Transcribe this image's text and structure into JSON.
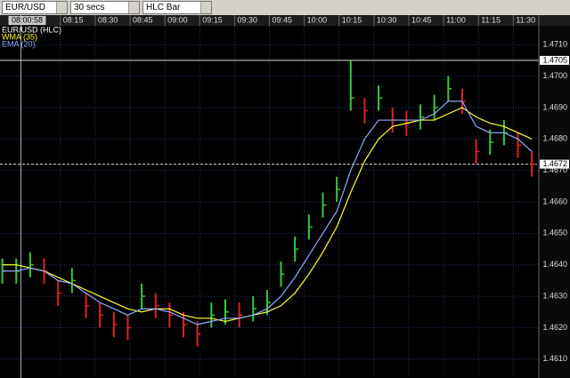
{
  "toolbar": {
    "symbol": "EUR/USD",
    "interval": "30 secs",
    "chart_type": "HLC Bar"
  },
  "chart_data": {
    "type": "hlc",
    "title": "EUR/USD (HLC)",
    "x": [
      -10,
      -4,
      2,
      8,
      14,
      20,
      26,
      32,
      38,
      44,
      50,
      56,
      62,
      68,
      74,
      80,
      86,
      92,
      98,
      104,
      110,
      116,
      122,
      128,
      134,
      140,
      146,
      152,
      158,
      164,
      170,
      176,
      182,
      188,
      194,
      200,
      206,
      212,
      218
    ],
    "high": [
      1.4642,
      1.4642,
      1.4644,
      1.4642,
      1.4635,
      1.4639,
      1.4631,
      1.4628,
      1.4625,
      1.4624,
      1.4634,
      1.4631,
      1.4628,
      1.4625,
      1.4622,
      1.4628,
      1.4629,
      1.4628,
      1.463,
      1.4632,
      1.4641,
      1.4649,
      1.4656,
      1.4663,
      1.4668,
      1.4705,
      1.4693,
      1.4697,
      1.469,
      1.4689,
      1.4691,
      1.4694,
      1.47,
      1.4696,
      1.468,
      1.4683,
      1.4686,
      1.4682,
      1.4676
    ],
    "low": [
      1.4634,
      1.4634,
      1.4636,
      1.4634,
      1.4627,
      1.4631,
      1.4623,
      1.462,
      1.4617,
      1.4616,
      1.4626,
      1.4623,
      1.462,
      1.4617,
      1.4614,
      1.462,
      1.4621,
      1.462,
      1.4622,
      1.4624,
      1.4633,
      1.4641,
      1.4648,
      1.4655,
      1.466,
      1.4689,
      1.4685,
      1.4689,
      1.4682,
      1.4681,
      1.4683,
      1.4686,
      1.4692,
      1.4688,
      1.4672,
      1.4675,
      1.4678,
      1.4674,
      1.4668
    ],
    "close": [
      1.4638,
      1.4638,
      1.464,
      1.4638,
      1.4631,
      1.4635,
      1.4627,
      1.4624,
      1.4621,
      1.462,
      1.463,
      1.4627,
      1.4624,
      1.4621,
      1.4618,
      1.4624,
      1.4625,
      1.4624,
      1.4626,
      1.4628,
      1.4637,
      1.4645,
      1.4652,
      1.4659,
      1.4664,
      1.4693,
      1.4689,
      1.4693,
      1.4686,
      1.4685,
      1.4687,
      1.469,
      1.4696,
      1.4692,
      1.4676,
      1.4679,
      1.4682,
      1.4678,
      1.4672
    ],
    "up_color": "#33cc33",
    "down_color": "#dd2222",
    "price_color": "#ffffff",
    "series": [
      {
        "name": "WMA (35)",
        "color": "#ffff33",
        "values": [
          1.464,
          1.464,
          1.4639,
          1.4638,
          1.4636,
          1.4634,
          1.4632,
          1.463,
          1.4628,
          1.4626,
          1.4625,
          1.4626,
          1.4626,
          1.4624,
          1.4623,
          1.4623,
          1.4622,
          1.4623,
          1.4624,
          1.4625,
          1.4627,
          1.4631,
          1.4637,
          1.4644,
          1.4652,
          1.4663,
          1.4673,
          1.468,
          1.4684,
          1.4685,
          1.4686,
          1.4686,
          1.4688,
          1.469,
          1.4687,
          1.4685,
          1.4684,
          1.4682,
          1.468
        ]
      },
      {
        "name": "EMA (20)",
        "color": "#8fa8ff",
        "values": [
          1.4638,
          1.4638,
          1.4639,
          1.4638,
          1.4635,
          1.4634,
          1.4631,
          1.4628,
          1.4626,
          1.4624,
          1.4626,
          1.4626,
          1.4625,
          1.4623,
          1.4621,
          1.4622,
          1.4623,
          1.4623,
          1.4624,
          1.4626,
          1.463,
          1.4636,
          1.4643,
          1.465,
          1.4657,
          1.467,
          1.468,
          1.4686,
          1.4686,
          1.4686,
          1.4686,
          1.4688,
          1.4692,
          1.4692,
          1.4684,
          1.4682,
          1.4682,
          1.468,
          1.4676
        ]
      }
    ],
    "xlim": [
      -11,
      221
    ],
    "xticks": [
      {
        "value": 15,
        "label": "08:15"
      },
      {
        "value": 30,
        "label": "08:30"
      },
      {
        "value": 45,
        "label": "08:45"
      },
      {
        "value": 60,
        "label": "09:00"
      },
      {
        "value": 75,
        "label": "09:15"
      },
      {
        "value": 90,
        "label": "09:30"
      },
      {
        "value": 105,
        "label": "09:45"
      },
      {
        "value": 120,
        "label": "10:00"
      },
      {
        "value": 135,
        "label": "10:15"
      },
      {
        "value": 150,
        "label": "10:30"
      },
      {
        "value": 165,
        "label": "10:45"
      },
      {
        "value": 180,
        "label": "11:00"
      },
      {
        "value": 195,
        "label": "11:15"
      },
      {
        "value": 210,
        "label": "11:30"
      }
    ],
    "cursor": {
      "value": -2,
      "label": "08:00:58"
    },
    "ylim": [
      1.4604,
      1.4716
    ],
    "yticks": [
      {
        "value": 1.461,
        "label": "1.4610"
      },
      {
        "value": 1.462,
        "label": "1.4620"
      },
      {
        "value": 1.463,
        "label": "1.4630"
      },
      {
        "value": 1.464,
        "label": "1.4640"
      },
      {
        "value": 1.465,
        "label": "1.4650"
      },
      {
        "value": 1.466,
        "label": "1.4660"
      },
      {
        "value": 1.467,
        "label": "1.4670"
      },
      {
        "value": 1.468,
        "label": "1.4680"
      },
      {
        "value": 1.469,
        "label": "1.4690"
      },
      {
        "value": 1.47,
        "label": "1.4700"
      },
      {
        "value": 1.471,
        "label": "1.4710"
      }
    ],
    "price_markers": [
      {
        "value": 1.4705,
        "label": "1.4705"
      },
      {
        "value": 1.4672,
        "label": "1.4672"
      }
    ],
    "grid": true
  }
}
